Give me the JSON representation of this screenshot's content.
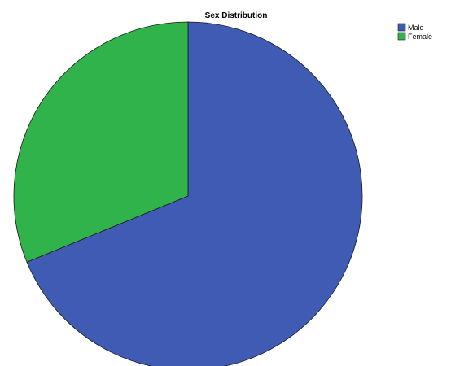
{
  "chart_data": {
    "type": "pie",
    "title": "Sex Distribution",
    "categories": [
      "Male",
      "Female"
    ],
    "values": [
      68.8,
      31.2
    ],
    "colors": [
      "#3f5bb3",
      "#2fb34a"
    ],
    "start_angle_deg": 0,
    "direction": "clockwise",
    "legend": {
      "placement": "top-right",
      "entries": [
        "Male",
        "Female"
      ]
    }
  }
}
